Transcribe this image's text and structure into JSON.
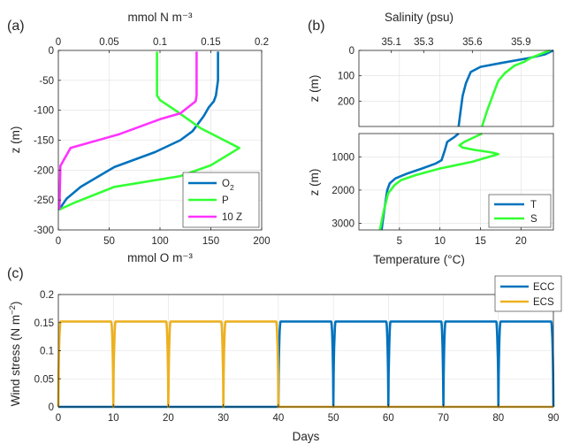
{
  "panels": {
    "a": {
      "label": "(a)"
    },
    "b": {
      "label": "(b)"
    },
    "c": {
      "label": "(c)"
    }
  },
  "colors": {
    "blue": "#0072BD",
    "green": "#33FF33",
    "magenta": "#FF33FF",
    "orange": "#EDB120"
  },
  "chart_data": [
    {
      "id": "a",
      "type": "line",
      "xlabel_bottom": "mmol O m⁻³",
      "xlabel_top": "mmol N m⁻³",
      "ylabel": "z (m)",
      "xlim_bottom": [
        0,
        200
      ],
      "xlim_top": [
        0,
        0.2
      ],
      "ylim": [
        -300,
        0
      ],
      "xticks_bottom": [
        "0",
        "50",
        "100",
        "150",
        "200"
      ],
      "xticks_top": [
        "0",
        "0.05",
        "0.1",
        "0.15",
        "0.2"
      ],
      "yticks": [
        "0",
        "-50",
        "-100",
        "-150",
        "-200",
        "-250",
        "-300"
      ],
      "grid": true,
      "legend_position": "bottom-right",
      "series": [
        {
          "name": "O₂",
          "name_base": "O",
          "name_sub": "2",
          "color": "#0072BD",
          "axis": "bottom",
          "points": [
            [
              157,
              -2
            ],
            [
              157,
              -50
            ],
            [
              155,
              -75
            ],
            [
              153,
              -85
            ],
            [
              148,
              -95
            ],
            [
              143,
              -110
            ],
            [
              132,
              -135
            ],
            [
              120,
              -150
            ],
            [
              95,
              -170
            ],
            [
              55,
              -195
            ],
            [
              22,
              -228
            ],
            [
              8,
              -248
            ],
            [
              2,
              -263
            ],
            [
              0,
              -266
            ]
          ]
        },
        {
          "name": "P",
          "color": "#33FF33",
          "axis": "top",
          "points": [
            [
              0.097,
              -2
            ],
            [
              0.097,
              -50
            ],
            [
              0.097,
              -75
            ],
            [
              0.1,
              -83
            ],
            [
              0.115,
              -100
            ],
            [
              0.14,
              -130
            ],
            [
              0.178,
              -163
            ],
            [
              0.15,
              -192
            ],
            [
              0.12,
              -210
            ],
            [
              0.055,
              -228
            ],
            [
              0.015,
              -255
            ],
            [
              0.001,
              -266
            ]
          ]
        },
        {
          "name": "10 Z",
          "color": "#FF33FF",
          "axis": "top",
          "points": [
            [
              0.136,
              -2
            ],
            [
              0.136,
              -50
            ],
            [
              0.136,
              -75
            ],
            [
              0.135,
              -85
            ],
            [
              0.12,
              -105
            ],
            [
              0.1,
              -115
            ],
            [
              0.06,
              -140
            ],
            [
              0.012,
              -163
            ],
            [
              0.002,
              -193
            ],
            [
              0.001,
              -266
            ]
          ]
        }
      ]
    },
    {
      "id": "b-top",
      "type": "line",
      "xlabel_top": "Salinity (psu)",
      "ylabel": "z (m)",
      "ylim": [
        0,
        300
      ],
      "xlim_bottom": [
        0,
        24
      ],
      "xlim_top": [
        34.9,
        36.1
      ],
      "xticks_top": [
        "35.1",
        "35.3",
        "35.6",
        "35.9"
      ],
      "yticks": [
        "0",
        "100",
        "200"
      ],
      "grid": true,
      "series": [
        {
          "name": "T",
          "color": "#0072BD",
          "axis": "bottom",
          "points": [
            [
              24,
              0
            ],
            [
              23,
              15
            ],
            [
              21,
              30
            ],
            [
              17.5,
              50
            ],
            [
              15,
              65
            ],
            [
              13.8,
              85
            ],
            [
              13.2,
              130
            ],
            [
              12.8,
              180
            ],
            [
              12.5,
              250
            ],
            [
              12.3,
              300
            ]
          ]
        },
        {
          "name": "S",
          "color": "#33FF33",
          "axis": "top",
          "points": [
            [
              36.08,
              0
            ],
            [
              36.03,
              12
            ],
            [
              35.96,
              30
            ],
            [
              35.92,
              45
            ],
            [
              35.86,
              60
            ],
            [
              35.8,
              90
            ],
            [
              35.76,
              120
            ],
            [
              35.73,
              170
            ],
            [
              35.69,
              240
            ],
            [
              35.66,
              300
            ]
          ]
        }
      ]
    },
    {
      "id": "b-bottom",
      "type": "line",
      "xlabel_bottom": "Temperature (°C)",
      "ylabel": "z (m)",
      "ylim": [
        300,
        3200
      ],
      "xlim_bottom": [
        0,
        24
      ],
      "xticks_bottom": [
        "5",
        "10",
        "15",
        "20"
      ],
      "yticks": [
        "1000",
        "2000",
        "3000"
      ],
      "grid": true,
      "legend_position": "bottom-right",
      "series": [
        {
          "name": "T",
          "color": "#0072BD",
          "axis": "bottom",
          "points": [
            [
              12.3,
              300
            ],
            [
              11.8,
              400
            ],
            [
              10.9,
              550
            ],
            [
              10.6,
              800
            ],
            [
              10.2,
              1100
            ],
            [
              9.5,
              1200
            ],
            [
              7.8,
              1350
            ],
            [
              6,
              1500
            ],
            [
              4.5,
              1650
            ],
            [
              3.8,
              1800
            ],
            [
              3.5,
              2000
            ],
            [
              3.2,
              2500
            ],
            [
              2.9,
              3000
            ],
            [
              2.8,
              3200
            ]
          ]
        },
        {
          "name": "S",
          "color": "#33FF33",
          "axis": "top",
          "points": [
            [
              35.66,
              300
            ],
            [
              35.55,
              550
            ],
            [
              35.52,
              650
            ],
            [
              35.54,
              720
            ],
            [
              35.61,
              790
            ],
            [
              35.72,
              870
            ],
            [
              35.76,
              920
            ],
            [
              35.6,
              1150
            ],
            [
              35.4,
              1350
            ],
            [
              35.25,
              1550
            ],
            [
              35.16,
              1700
            ],
            [
              35.12,
              1850
            ],
            [
              35.08,
              2100
            ],
            [
              35.05,
              2700
            ],
            [
              35.03,
              3200
            ]
          ]
        }
      ]
    },
    {
      "id": "c",
      "type": "line",
      "xlabel": "Days",
      "ylabel": "Wind stress (N m⁻²)",
      "ylabel_base": "Wind stress (N m",
      "ylabel_sup": "−2",
      "ylabel_end": ")",
      "xlim": [
        0,
        90
      ],
      "ylim": [
        0,
        0.2
      ],
      "xticks": [
        "0",
        "10",
        "20",
        "30",
        "40",
        "50",
        "60",
        "70",
        "80",
        "90"
      ],
      "yticks": [
        "0",
        "0.05",
        "0.1",
        "0.15",
        "0.2"
      ],
      "grid": true,
      "legend_position": "top-right outside",
      "series": [
        {
          "name": "ECC",
          "color": "#0072BD",
          "pulse_max": 0.152,
          "period_days": 10,
          "active_days": [
            40,
            90
          ]
        },
        {
          "name": "ECS",
          "color": "#EDB120",
          "pulse_max": 0.152,
          "period_days": 10,
          "active_days": [
            0,
            40
          ]
        }
      ]
    }
  ]
}
